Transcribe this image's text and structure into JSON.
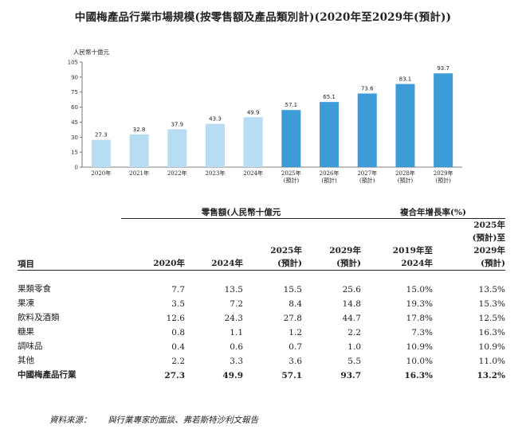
{
  "title": "中國梅產品行業市場規模(按零售額及產品類別計)(2020年至2029年(預計))",
  "chart_data": {
    "type": "bar",
    "unit_label": "人民幣十億元",
    "categories": [
      "2020年",
      "2021年",
      "2022年",
      "2023年",
      "2024年",
      "2025年\n(預計)",
      "2026年\n(預計)",
      "2027年\n(預計)",
      "2028年\n(預計)",
      "2029年\n(預計)"
    ],
    "values": [
      27.3,
      32.8,
      37.9,
      43.3,
      49.9,
      57.1,
      65.1,
      73.6,
      83.1,
      93.7
    ],
    "ylim": [
      0,
      105
    ],
    "yticks": [
      0,
      15,
      30,
      45,
      60,
      75,
      90,
      105
    ],
    "colors": {
      "historical": "#b8ddf2",
      "forecast": "#3d9bd8"
    },
    "forecast_start_index": 5
  },
  "table": {
    "group_headers": {
      "retail": "零售額(人民幣十億元",
      "cagr": "複合年增長率(%)"
    },
    "col_headers": {
      "item": "項目",
      "y2020": "2020年",
      "y2024": "2024年",
      "y2025": [
        "2025年",
        "(預計)"
      ],
      "y2029": [
        "2029年",
        "(預計)"
      ],
      "cagr1": [
        "2019年至",
        "2024年"
      ],
      "cagr2": [
        "2025年",
        "(預計)至",
        "2029年",
        "(預計)"
      ]
    },
    "rows": [
      [
        "果類零食",
        "7.7",
        "13.5",
        "15.5",
        "25.6",
        "15.0%",
        "13.5%"
      ],
      [
        "果凍",
        "3.5",
        "7.2",
        "8.4",
        "14.8",
        "19.3%",
        "15.3%"
      ],
      [
        "飲料及酒類",
        "12.6",
        "24.3",
        "27.8",
        "44.7",
        "17.8%",
        "12.5%"
      ],
      [
        "糖果",
        "0.8",
        "1.1",
        "1.2",
        "2.2",
        "7.3%",
        "16.3%"
      ],
      [
        "調味品",
        "0.4",
        "0.6",
        "0.7",
        "1.0",
        "10.9%",
        "10.9%"
      ],
      [
        "其他",
        "2.2",
        "3.3",
        "3.6",
        "5.5",
        "10.0%",
        "11.0%"
      ],
      [
        "中國梅產品行業",
        "27.3",
        "49.9",
        "57.1",
        "93.7",
        "16.3%",
        "13.2%"
      ]
    ]
  },
  "source": {
    "label": "資料來源：",
    "text": "與行業專家的面談、弗若斯特沙利文報告"
  }
}
